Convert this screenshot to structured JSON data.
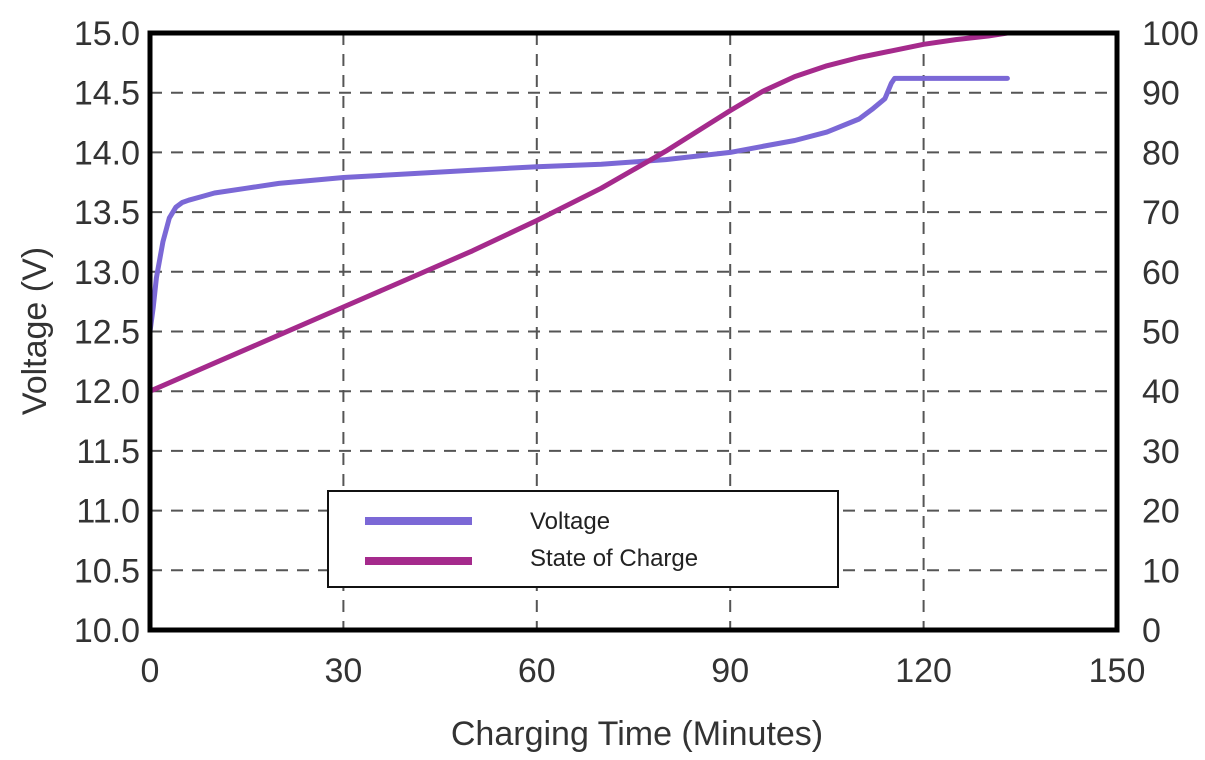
{
  "chart_data": {
    "type": "line",
    "xlabel": "Charging Time (Minutes)",
    "ylabel": "Voltage (V)",
    "xlim": [
      0,
      150
    ],
    "ylim": [
      10.0,
      15.0
    ],
    "y2lim": [
      0,
      100
    ],
    "x_ticks": [
      "0",
      "30",
      "60",
      "90",
      "120",
      "150"
    ],
    "y_ticks": [
      "10.0",
      "10.5",
      "11.0",
      "11.5",
      "12.0",
      "12.5",
      "13.0",
      "13.5",
      "14.0",
      "14.5",
      "15.0"
    ],
    "y2_ticks": [
      "0",
      "10",
      "20",
      "30",
      "40",
      "50",
      "60",
      "70",
      "80",
      "90",
      "100"
    ],
    "grid": true,
    "legend_position": "bottom-center",
    "series": [
      {
        "name": "Voltage",
        "axis": "left",
        "color": "#7b68d6",
        "x": [
          0,
          0.5,
          1,
          2,
          3,
          4,
          5,
          6,
          8,
          10,
          15,
          20,
          30,
          40,
          50,
          60,
          70,
          80,
          90,
          95,
          100,
          105,
          110,
          112,
          114,
          115,
          115.5,
          120,
          125,
          133
        ],
        "y": [
          12.5,
          12.7,
          12.95,
          13.25,
          13.45,
          13.54,
          13.58,
          13.6,
          13.63,
          13.66,
          13.7,
          13.74,
          13.79,
          13.82,
          13.85,
          13.88,
          13.9,
          13.94,
          14.0,
          14.05,
          14.1,
          14.17,
          14.28,
          14.36,
          14.45,
          14.58,
          14.62,
          14.62,
          14.62,
          14.62
        ]
      },
      {
        "name": "State of Charge",
        "axis": "right",
        "color": "#a52a8c",
        "x": [
          0,
          10,
          20,
          30,
          40,
          50,
          60,
          70,
          80,
          90,
          95,
          100,
          105,
          110,
          115,
          120,
          125,
          130,
          133
        ],
        "y": [
          40,
          44.7,
          49.4,
          54.1,
          58.8,
          63.5,
          68.6,
          74,
          80.2,
          87,
          90.2,
          92.7,
          94.5,
          95.9,
          97,
          98.1,
          98.9,
          99.5,
          100
        ]
      }
    ]
  }
}
